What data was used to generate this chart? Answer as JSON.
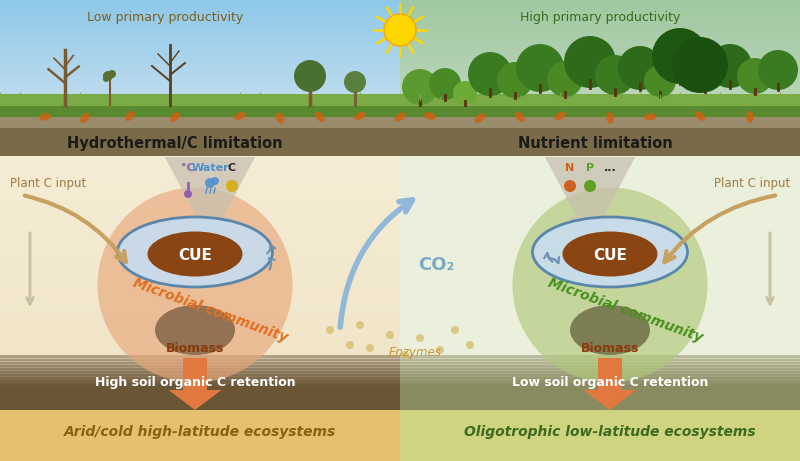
{
  "left_productivity": "Low primary productivity",
  "right_productivity": "High primary productivity",
  "left_limitation": "Hydrothermal/C limitation",
  "right_limitation": "Nutrient limitation",
  "left_plant_input": "Plant C input",
  "right_plant_input": "Plant C input",
  "co2_label": "CO₂",
  "cue_label": "CUE",
  "microbial_label": "Microbial community",
  "biomass_label": "Biomass",
  "enzymes_label": "Enzymes",
  "left_soil": "High soil organic C retention",
  "right_soil": "Low soil organic C retention",
  "left_ecosystem": "Arid/cold high-latitude ecosystems",
  "right_ecosystem": "Oligotrophic low-latitude ecosystems",
  "temp_label": "°C",
  "water_label": "Water",
  "c_label": "C",
  "n_label": "N",
  "p_label": "P",
  "dots_label": "...",
  "sky_left": "#8EC8E8",
  "sky_right": "#A0C8A0",
  "grass_dark": "#5A8A30",
  "grass_light": "#7AAB45",
  "ground_strip": "#9A8B6A",
  "ground_dark": "#7A6A48",
  "left_bg": "#F5ECD5",
  "right_bg": "#EBF0DC",
  "soil_left_color": "#6A5535",
  "soil_right_color": "#8A8A60",
  "footer_left": "#E5C070",
  "footer_right": "#D0D480",
  "blob_left": "#E8A87C",
  "blob_right": "#B0C87A",
  "cue_outer": "#C8DCF0",
  "cue_inner": "#8B4513",
  "arrow_brown": "#C8A060",
  "arrow_light_brown": "#D8C090",
  "arrow_blue": "#90B8D8",
  "arrow_down_color": "#C8C0B0",
  "arrow_orange": "#E07840",
  "temp_color": "#9060B0",
  "water_color": "#5090D0",
  "c_color": "#D4B020",
  "n_color": "#D06020",
  "p_color": "#60A020",
  "left_prod_color": "#7B6020",
  "right_prod_color": "#3A6B20",
  "limitation_color": "#1A1A1A",
  "plant_input_color": "#A07840",
  "co2_color": "#7AAAC8",
  "micro_left_color": "#E07020",
  "micro_right_color": "#4A9020",
  "biomass_color": "#8B3A0A",
  "enzymes_color": "#C89640",
  "soil_text_color": "#FFFFFF",
  "left_eco_color": "#8B6010",
  "right_eco_color": "#3A6B20"
}
